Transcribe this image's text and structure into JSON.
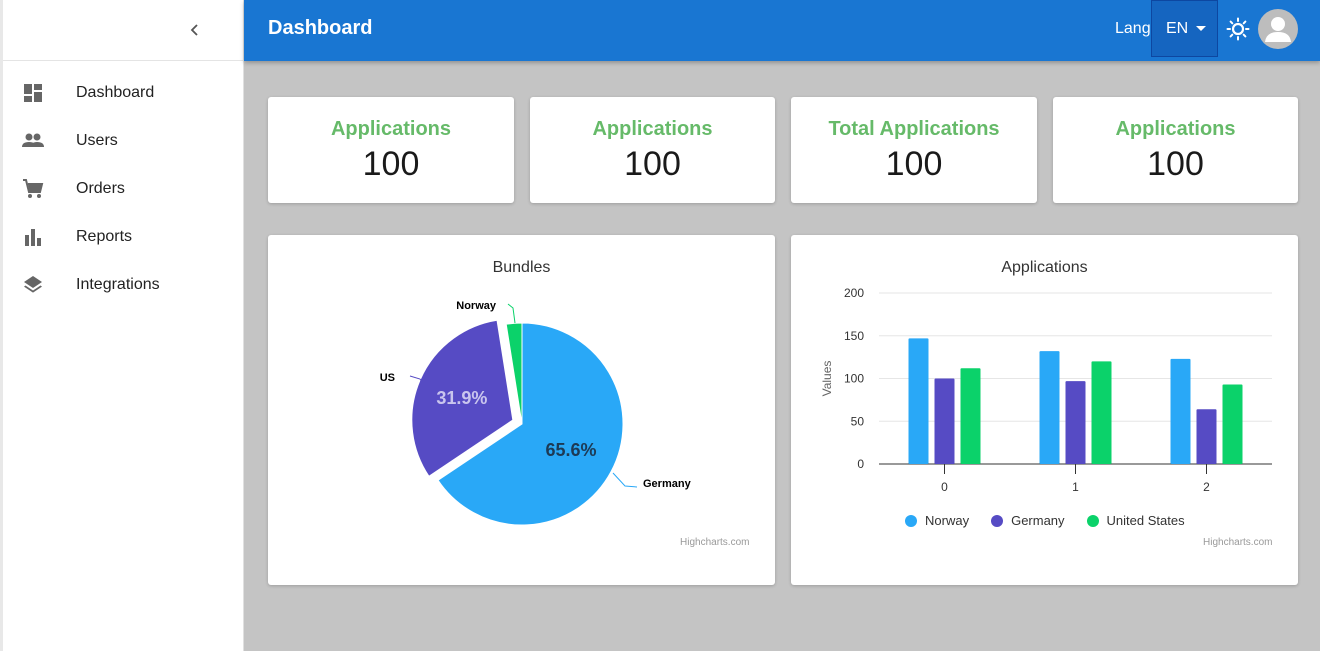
{
  "header": {
    "title": "Dashboard",
    "lang_label": "Lang",
    "lang_value": "EN"
  },
  "sidebar": {
    "items": [
      {
        "label": "Dashboard",
        "icon": "dashboard-icon"
      },
      {
        "label": "Users",
        "icon": "people-icon"
      },
      {
        "label": "Orders",
        "icon": "cart-icon"
      },
      {
        "label": "Reports",
        "icon": "bar-chart-icon"
      },
      {
        "label": "Integrations",
        "icon": "layers-icon"
      }
    ]
  },
  "stats": [
    {
      "title": "Applications",
      "value": "100"
    },
    {
      "title": "Applications",
      "value": "100"
    },
    {
      "title": "Total Applications",
      "value": "100"
    },
    {
      "title": "Applications",
      "value": "100"
    }
  ],
  "colors": {
    "header": "#1976d2",
    "stat_title": "#4caf50",
    "norway": "#29a8f7",
    "germany_bar": "#564bc4",
    "united_states": "#0bd26a"
  },
  "chart_data": [
    {
      "type": "pie",
      "title": "Bundles",
      "credits": "Highcharts.com",
      "slices": [
        {
          "name": "Germany",
          "value": 65.6,
          "label": "65.6%",
          "color": "#29a8f7"
        },
        {
          "name": "US",
          "value": 31.9,
          "label": "31.9%",
          "color": "#564bc4",
          "sliced": true
        },
        {
          "name": "Norway",
          "value": 2.5,
          "label": "",
          "color": "#0bd26a"
        }
      ]
    },
    {
      "type": "bar",
      "title": "Applications",
      "credits": "Highcharts.com",
      "categories": [
        "0",
        "1",
        "2"
      ],
      "ylabel": "Values",
      "ylim": [
        0,
        200
      ],
      "yticks": [
        "0",
        "50",
        "100",
        "150",
        "200"
      ],
      "grid": true,
      "legend": "bottom-center",
      "series": [
        {
          "name": "Norway",
          "values": [
            147,
            132,
            123
          ],
          "color": "#29a8f7"
        },
        {
          "name": "Germany",
          "values": [
            100,
            97,
            64
          ],
          "color": "#564bc4"
        },
        {
          "name": "United States",
          "values": [
            112,
            120,
            93
          ],
          "color": "#0bd26a"
        }
      ]
    }
  ]
}
